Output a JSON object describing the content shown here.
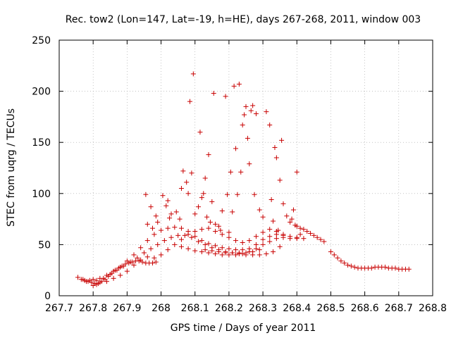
{
  "chart_data": {
    "type": "scatter",
    "title": "Rec. tow2 (Lon=147, Lat=-19, h=HE), days 267-268, 2011, window 003",
    "xlabel": "GPS time / Days of year 2011",
    "ylabel": "STEC from uqrg / TECUs",
    "xlim": [
      267.7,
      268.8
    ],
    "ylim": [
      0,
      250
    ],
    "x_ticks": [
      267.7,
      267.8,
      267.9,
      268.0,
      268.1,
      268.2,
      268.3,
      268.4,
      268.5,
      268.6,
      268.7,
      268.8
    ],
    "x_tick_labels": [
      "267.7",
      "267.8",
      "267.9",
      "268",
      "268.1",
      "268.2",
      "268.3",
      "268.4",
      "268.5",
      "268.6",
      "268.7",
      "268.8"
    ],
    "y_ticks": [
      0,
      50,
      100,
      150,
      200,
      250
    ],
    "y_tick_labels": [
      "0",
      "50",
      "100",
      "150",
      "200",
      "250"
    ],
    "grid": true,
    "marker_color": "#c80000",
    "series": [
      {
        "points": [
          [
            267.755,
            18
          ],
          [
            267.765,
            16
          ],
          [
            267.775,
            15
          ],
          [
            267.785,
            14
          ],
          [
            267.795,
            13
          ],
          [
            267.805,
            12
          ],
          [
            267.815,
            12
          ],
          [
            267.825,
            14
          ],
          [
            267.835,
            16
          ],
          [
            267.845,
            19
          ],
          [
            267.855,
            22
          ],
          [
            267.865,
            25
          ],
          [
            267.875,
            27
          ],
          [
            267.885,
            29
          ],
          [
            267.895,
            31
          ],
          [
            267.905,
            32
          ],
          [
            267.915,
            33
          ],
          [
            267.925,
            34
          ],
          [
            267.935,
            34
          ],
          [
            267.945,
            33
          ],
          [
            267.955,
            32
          ],
          [
            267.965,
            32
          ],
          [
            267.975,
            32
          ],
          [
            267.985,
            33
          ],
          [
            267.77,
            16
          ],
          [
            267.79,
            15
          ],
          [
            267.81,
            15
          ],
          [
            267.83,
            17
          ],
          [
            267.85,
            21
          ],
          [
            267.87,
            25
          ],
          [
            267.89,
            29
          ],
          [
            267.91,
            33
          ],
          [
            267.93,
            37
          ],
          [
            267.95,
            42
          ],
          [
            267.97,
            46
          ],
          [
            267.99,
            50
          ],
          [
            268.01,
            54
          ],
          [
            268.03,
            57
          ],
          [
            268.05,
            59
          ],
          [
            268.07,
            59
          ],
          [
            268.09,
            57
          ],
          [
            268.11,
            53
          ],
          [
            268.13,
            50
          ],
          [
            268.15,
            47
          ],
          [
            268.17,
            45
          ],
          [
            268.19,
            43
          ],
          [
            268.21,
            42
          ],
          [
            268.23,
            41
          ],
          [
            268.25,
            40
          ],
          [
            268.27,
            40
          ],
          [
            268.29,
            40
          ],
          [
            268.31,
            41
          ],
          [
            268.33,
            43
          ],
          [
            268.35,
            48
          ],
          [
            267.78,
            14
          ],
          [
            267.8,
            16
          ],
          [
            267.82,
            17
          ],
          [
            267.84,
            20
          ],
          [
            267.86,
            24
          ],
          [
            267.88,
            28
          ],
          [
            267.9,
            34
          ],
          [
            267.92,
            40
          ],
          [
            267.94,
            47
          ],
          [
            267.96,
            54
          ],
          [
            267.98,
            60
          ],
          [
            268.0,
            64
          ],
          [
            268.02,
            66
          ],
          [
            268.04,
            67
          ],
          [
            268.06,
            66
          ],
          [
            268.08,
            63
          ],
          [
            268.1,
            58
          ],
          [
            268.12,
            54
          ],
          [
            268.14,
            51
          ],
          [
            268.16,
            49
          ],
          [
            268.18,
            47
          ],
          [
            268.2,
            46
          ],
          [
            268.22,
            45
          ],
          [
            268.24,
            45
          ],
          [
            268.26,
            46
          ],
          [
            268.28,
            50
          ],
          [
            268.3,
            55
          ],
          [
            268.32,
            58
          ],
          [
            268.34,
            60
          ],
          [
            268.36,
            59
          ],
          [
            267.8,
            10
          ],
          [
            267.81,
            11
          ],
          [
            267.82,
            13
          ],
          [
            267.84,
            14
          ],
          [
            267.86,
            17
          ],
          [
            267.88,
            20
          ],
          [
            267.9,
            24
          ],
          [
            267.92,
            30
          ],
          [
            267.94,
            35
          ],
          [
            267.96,
            38
          ],
          [
            267.98,
            37
          ],
          [
            268.0,
            40
          ],
          [
            268.02,
            45
          ],
          [
            268.04,
            50
          ],
          [
            268.06,
            55
          ],
          [
            268.08,
            60
          ],
          [
            268.1,
            63
          ],
          [
            268.12,
            65
          ],
          [
            268.14,
            66
          ],
          [
            268.16,
            63
          ],
          [
            268.18,
            60
          ],
          [
            268.2,
            57
          ],
          [
            268.22,
            54
          ],
          [
            268.24,
            52
          ],
          [
            268.26,
            54
          ],
          [
            268.28,
            58
          ],
          [
            268.3,
            62
          ],
          [
            268.32,
            65
          ],
          [
            268.34,
            63
          ],
          [
            268.36,
            60
          ],
          [
            268.38,
            58
          ],
          [
            268.4,
            57
          ],
          [
            268.42,
            56
          ],
          [
            268.06,
            48
          ],
          [
            268.08,
            46
          ],
          [
            268.1,
            44
          ],
          [
            268.12,
            43
          ],
          [
            268.14,
            42
          ],
          [
            268.16,
            41
          ],
          [
            268.18,
            40
          ],
          [
            268.2,
            40
          ],
          [
            268.22,
            40
          ],
          [
            268.24,
            41
          ],
          [
            268.26,
            43
          ],
          [
            268.28,
            46
          ],
          [
            268.3,
            50
          ],
          [
            268.32,
            53
          ],
          [
            268.34,
            56
          ],
          [
            268.36,
            57
          ],
          [
            268.38,
            56
          ],
          [
            268.4,
            56
          ],
          [
            268.13,
            45
          ],
          [
            268.15,
            44
          ],
          [
            268.17,
            43
          ],
          [
            268.19,
            42
          ],
          [
            268.21,
            42
          ],
          [
            268.23,
            42
          ],
          [
            268.25,
            42
          ],
          [
            268.27,
            43
          ],
          [
            268.29,
            45
          ],
          [
            268.4,
            68
          ],
          [
            268.41,
            66
          ],
          [
            268.42,
            65
          ],
          [
            268.43,
            63
          ],
          [
            268.44,
            61
          ],
          [
            268.45,
            59
          ],
          [
            268.46,
            57
          ],
          [
            268.47,
            55
          ],
          [
            268.48,
            53
          ],
          [
            268.5,
            43
          ],
          [
            268.51,
            40
          ],
          [
            268.52,
            37
          ],
          [
            268.53,
            34
          ],
          [
            268.54,
            32
          ],
          [
            268.55,
            30
          ],
          [
            268.56,
            29
          ],
          [
            268.57,
            28
          ],
          [
            268.58,
            27
          ],
          [
            268.59,
            27
          ],
          [
            268.6,
            27
          ],
          [
            268.61,
            27
          ],
          [
            268.62,
            27
          ],
          [
            268.63,
            28
          ],
          [
            268.64,
            28
          ],
          [
            268.65,
            28
          ],
          [
            268.66,
            28
          ],
          [
            268.67,
            27
          ],
          [
            268.68,
            27
          ],
          [
            268.69,
            27
          ],
          [
            268.7,
            26
          ],
          [
            268.71,
            26
          ],
          [
            268.72,
            26
          ],
          [
            268.73,
            26
          ],
          [
            267.955,
            99
          ],
          [
            267.97,
            87
          ],
          [
            267.96,
            70
          ],
          [
            267.975,
            66
          ],
          [
            267.985,
            78
          ],
          [
            267.99,
            72
          ],
          [
            268.005,
            98
          ],
          [
            268.015,
            88
          ],
          [
            268.02,
            93
          ],
          [
            268.025,
            76
          ],
          [
            268.03,
            80
          ],
          [
            268.045,
            82
          ],
          [
            268.055,
            75
          ],
          [
            268.06,
            105
          ],
          [
            268.065,
            122
          ],
          [
            268.075,
            111
          ],
          [
            268.08,
            100
          ],
          [
            268.085,
            190
          ],
          [
            268.09,
            120
          ],
          [
            268.095,
            217
          ],
          [
            268.1,
            80
          ],
          [
            268.11,
            87
          ],
          [
            268.115,
            160
          ],
          [
            268.12,
            96
          ],
          [
            268.125,
            100
          ],
          [
            268.13,
            115
          ],
          [
            268.135,
            77
          ],
          [
            268.14,
            138
          ],
          [
            268.145,
            72
          ],
          [
            268.15,
            92
          ],
          [
            268.155,
            198
          ],
          [
            268.16,
            70
          ],
          [
            268.17,
            68
          ],
          [
            268.175,
            64
          ],
          [
            268.18,
            83
          ],
          [
            268.19,
            195
          ],
          [
            268.195,
            99
          ],
          [
            268.2,
            62
          ],
          [
            268.205,
            121
          ],
          [
            268.21,
            82
          ],
          [
            268.215,
            205
          ],
          [
            268.22,
            144
          ],
          [
            268.225,
            99
          ],
          [
            268.23,
            207
          ],
          [
            268.235,
            121
          ],
          [
            268.24,
            167
          ],
          [
            268.245,
            177
          ],
          [
            268.25,
            185
          ],
          [
            268.255,
            154
          ],
          [
            268.26,
            129
          ],
          [
            268.265,
            181
          ],
          [
            268.27,
            186
          ],
          [
            268.275,
            99
          ],
          [
            268.28,
            178
          ],
          [
            268.29,
            84
          ],
          [
            268.3,
            77
          ],
          [
            268.31,
            180
          ],
          [
            268.32,
            167
          ],
          [
            268.325,
            94
          ],
          [
            268.33,
            73
          ],
          [
            268.335,
            145
          ],
          [
            268.34,
            135
          ],
          [
            268.345,
            64
          ],
          [
            268.35,
            113
          ],
          [
            268.355,
            152
          ],
          [
            268.36,
            90
          ],
          [
            268.37,
            78
          ],
          [
            268.38,
            72
          ],
          [
            268.39,
            84
          ],
          [
            268.4,
            121
          ],
          [
            268.41,
            60
          ],
          [
            268.395,
            69
          ],
          [
            268.385,
            75
          ]
        ]
      }
    ]
  }
}
